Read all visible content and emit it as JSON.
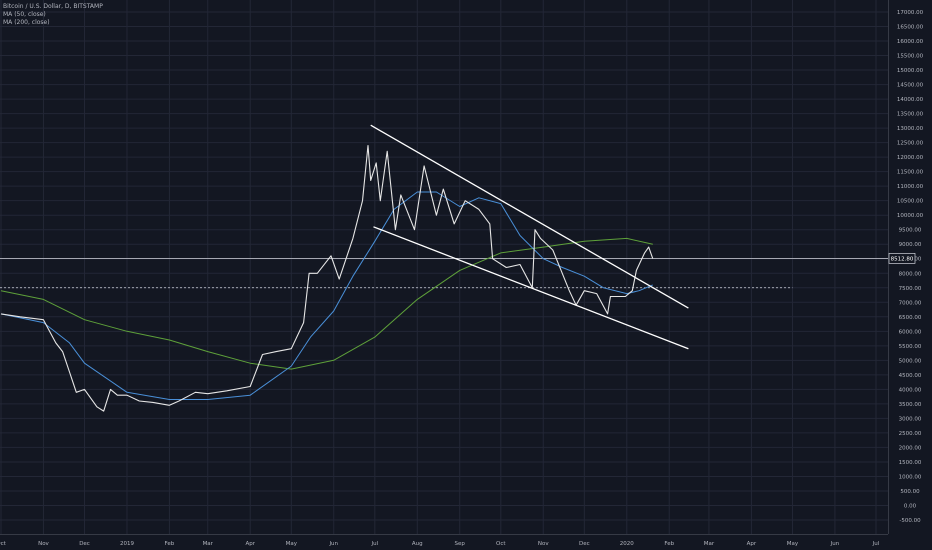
{
  "legend": {
    "symbol": "Bitcoin / U.S. Dollar, D, BITSTAMP",
    "ma50": "MA (50, close)",
    "ma200": "MA (200, close)"
  },
  "colors": {
    "background": "#131722",
    "grid": "#232736",
    "price": "#e6e6e6",
    "ma50": "#4a90d9",
    "ma200": "#5ea13a",
    "trendline": "#ffffff",
    "axis_text": "#b2b5be"
  },
  "chart_data": {
    "type": "line",
    "title": "Bitcoin / U.S. Dollar, D, BITSTAMP",
    "ylim": [
      -500,
      17500
    ],
    "y_ticks": [
      17000,
      16500,
      16000,
      15500,
      15000,
      14500,
      14000,
      13500,
      13000,
      12500,
      12000,
      11500,
      11000,
      10500,
      10000,
      9500,
      9000,
      8500,
      8000,
      7500,
      7000,
      6500,
      6000,
      5500,
      5000,
      4500,
      4000,
      3500,
      3000,
      2500,
      2000,
      1500,
      1000,
      500,
      0,
      -500
    ],
    "y_tick_labels": [
      "17000.00",
      "16500.00",
      "16000.00",
      "15500.00",
      "15000.00",
      "14500.00",
      "14000.00",
      "13500.00",
      "13000.00",
      "12500.00",
      "12000.00",
      "11500.00",
      "11000.00",
      "10500.00",
      "10000.00",
      "9500.00",
      "9000.00",
      "8500.00",
      "8000.00",
      "7500.00",
      "7000.00",
      "6500.00",
      "6000.00",
      "5500.00",
      "5000.00",
      "4500.00",
      "4000.00",
      "3500.00",
      "3000.00",
      "2500.00",
      "2000.00",
      "1500.00",
      "1000.00",
      "500.00",
      "0.00",
      "-500.00"
    ],
    "x_ticks": [
      "Oct",
      "Nov",
      "Dec",
      "2019",
      "Feb",
      "Mar",
      "Apr",
      "May",
      "Jun",
      "Jul",
      "Aug",
      "Sep",
      "Oct",
      "Nov",
      "Dec",
      "2020",
      "Feb",
      "Mar",
      "Apr",
      "May",
      "Jun",
      "Jul"
    ],
    "x_tick_dates": [
      "2018-10-01",
      "2018-11-01",
      "2018-12-01",
      "2019-01-01",
      "2019-02-01",
      "2019-03-01",
      "2019-04-01",
      "2019-05-01",
      "2019-06-01",
      "2019-07-01",
      "2019-08-01",
      "2019-09-01",
      "2019-10-01",
      "2019-11-01",
      "2019-12-01",
      "2020-01-01",
      "2020-02-01",
      "2020-03-01",
      "2020-04-01",
      "2020-05-01",
      "2020-06-01",
      "2020-07-01"
    ],
    "last_price_label": "8512.80",
    "last_price": 8512.8,
    "reference_level": 7500,
    "series": [
      {
        "name": "Bitcoin / U.S. Dollar",
        "x": [
          "2018-10-01",
          "2018-10-15",
          "2018-11-01",
          "2018-11-10",
          "2018-11-15",
          "2018-11-20",
          "2018-11-25",
          "2018-12-01",
          "2018-12-10",
          "2018-12-15",
          "2018-12-20",
          "2018-12-25",
          "2019-01-01",
          "2019-01-10",
          "2019-01-20",
          "2019-02-01",
          "2019-02-08",
          "2019-02-20",
          "2019-03-01",
          "2019-03-15",
          "2019-04-01",
          "2019-04-10",
          "2019-04-20",
          "2019-05-01",
          "2019-05-10",
          "2019-05-14",
          "2019-05-20",
          "2019-05-30",
          "2019-06-05",
          "2019-06-15",
          "2019-06-22",
          "2019-06-26",
          "2019-06-28",
          "2019-07-02",
          "2019-07-05",
          "2019-07-10",
          "2019-07-16",
          "2019-07-20",
          "2019-07-30",
          "2019-08-06",
          "2019-08-15",
          "2019-08-20",
          "2019-08-28",
          "2019-09-05",
          "2019-09-15",
          "2019-09-23",
          "2019-09-25",
          "2019-10-05",
          "2019-10-15",
          "2019-10-24",
          "2019-10-26",
          "2019-10-30",
          "2019-11-08",
          "2019-11-20",
          "2019-11-25",
          "2019-12-01",
          "2019-12-10",
          "2019-12-18",
          "2019-12-20",
          "2019-12-31",
          "2020-01-05",
          "2020-01-08",
          "2020-01-14",
          "2020-01-17",
          "2020-01-20"
        ],
        "values": [
          6600,
          6500,
          6400,
          5600,
          5300,
          4600,
          3900,
          4000,
          3400,
          3250,
          4000,
          3800,
          3800,
          3600,
          3550,
          3450,
          3600,
          3900,
          3850,
          3950,
          4100,
          5200,
          5300,
          5400,
          6300,
          8000,
          8000,
          8600,
          7800,
          9200,
          10500,
          12400,
          11200,
          11800,
          10500,
          12200,
          9500,
          10700,
          9500,
          11700,
          10000,
          10900,
          9700,
          10500,
          10200,
          9700,
          8500,
          8200,
          8300,
          7500,
          9500,
          9200,
          8800,
          7400,
          6900,
          7400,
          7300,
          6600,
          7200,
          7200,
          7400,
          8100,
          8700,
          8900,
          8500
        ]
      },
      {
        "name": "MA (50, close)",
        "x": [
          "2018-10-01",
          "2018-11-01",
          "2018-11-20",
          "2018-12-01",
          "2019-01-01",
          "2019-02-01",
          "2019-03-01",
          "2019-04-01",
          "2019-05-01",
          "2019-05-15",
          "2019-06-01",
          "2019-06-15",
          "2019-07-01",
          "2019-07-15",
          "2019-08-01",
          "2019-08-15",
          "2019-09-01",
          "2019-09-15",
          "2019-10-01",
          "2019-10-15",
          "2019-11-01",
          "2019-11-15",
          "2019-12-01",
          "2019-12-15",
          "2020-01-01",
          "2020-01-10",
          "2020-01-20"
        ],
        "values": [
          6600,
          6300,
          5600,
          4900,
          3900,
          3650,
          3650,
          3800,
          4800,
          5800,
          6700,
          7900,
          9100,
          10200,
          10800,
          10800,
          10300,
          10600,
          10400,
          9300,
          8500,
          8200,
          7900,
          7500,
          7300,
          7400,
          7600
        ]
      },
      {
        "name": "MA (200, close)",
        "x": [
          "2018-10-01",
          "2018-11-01",
          "2018-12-01",
          "2019-01-01",
          "2019-02-01",
          "2019-03-01",
          "2019-04-01",
          "2019-05-01",
          "2019-06-01",
          "2019-07-01",
          "2019-08-01",
          "2019-09-01",
          "2019-10-01",
          "2019-11-01",
          "2019-12-01",
          "2020-01-01",
          "2020-01-20"
        ],
        "values": [
          7400,
          7100,
          6400,
          6000,
          5700,
          5300,
          4900,
          4700,
          5000,
          5800,
          7100,
          8100,
          8700,
          8900,
          9100,
          9200,
          9000
        ]
      }
    ],
    "trendlines": [
      {
        "from": {
          "x": "2019-06-28",
          "y": 13100
        },
        "to": {
          "x": "2020-02-15",
          "y": 6800
        }
      },
      {
        "from": {
          "x": "2019-06-30",
          "y": 9600
        },
        "to": {
          "x": "2020-02-15",
          "y": 5400
        }
      }
    ]
  }
}
